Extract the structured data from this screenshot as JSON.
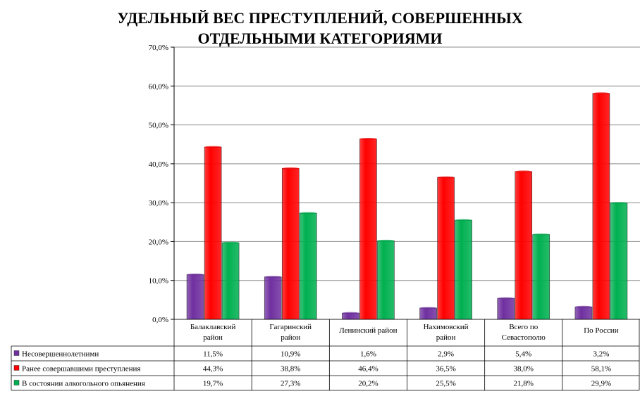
{
  "chart_data": {
    "type": "bar",
    "title_lines": [
      "УДЕЛЬНЫЙ ВЕС ПРЕСТУПЛЕНИЙ, СОВЕРШЕННЫХ",
      "ОТДЕЛЬНЫМИ КАТЕГОРИЯМИ"
    ],
    "categories": [
      [
        "Балаклавский",
        "район"
      ],
      [
        "Гагаринский",
        "район"
      ],
      [
        "Ленинский район"
      ],
      [
        "Нахимовский",
        "район"
      ],
      [
        "Всего по",
        "Севастополю"
      ],
      [
        "По России"
      ]
    ],
    "series": [
      {
        "name": "Несовершеннолетними",
        "values": [
          11.5,
          10.9,
          1.6,
          2.9,
          5.4,
          3.2
        ],
        "labels": [
          "11,5%",
          "10,9%",
          "1,6%",
          "2,9%",
          "5,4%",
          "3,2%"
        ],
        "color": "#7030a0"
      },
      {
        "name": "Ранее совершавшими преступления",
        "values": [
          44.3,
          38.8,
          46.4,
          36.5,
          38.0,
          58.1
        ],
        "labels": [
          "44,3%",
          "38,8%",
          "46,4%",
          "36,5%",
          "38,0%",
          "58,1%"
        ],
        "color": "#ff0000"
      },
      {
        "name": "В состоянии алкогольного опьянения",
        "values": [
          19.7,
          27.3,
          20.2,
          25.5,
          21.8,
          29.9
        ],
        "labels": [
          "19,7%",
          "27,3%",
          "20,2%",
          "25,5%",
          "21,8%",
          "29,9%"
        ],
        "color": "#00b050"
      }
    ],
    "y_ticks": [
      "0,0%",
      "10,0%",
      "20,0%",
      "30,0%",
      "40,0%",
      "50,0%",
      "60,0%",
      "70,0%"
    ],
    "ylim": [
      0,
      70
    ],
    "grid": true,
    "legend": "data-table"
  }
}
